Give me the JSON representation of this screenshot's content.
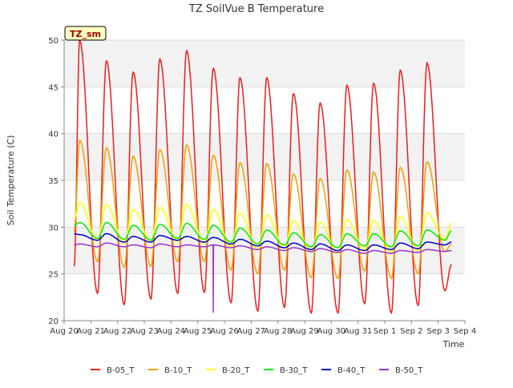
{
  "chart_data": {
    "type": "line",
    "title": "TZ SoilVue B Temperature",
    "xlabel": "Time",
    "ylabel": "Soil Temperature (C)",
    "ylim": [
      20,
      50
    ],
    "xlim": [
      "2023-08-20",
      "2023-09-04"
    ],
    "y_ticks": [
      20,
      25,
      30,
      35,
      40,
      45,
      50
    ],
    "x_ticks": [
      "Aug 20",
      "Aug 21",
      "Aug 22",
      "Aug 23",
      "Aug 24",
      "Aug 25",
      "Aug 26",
      "Aug 27",
      "Aug 28",
      "Aug 29",
      "Aug 30",
      "Aug 31",
      "Sep 1",
      "Sep 2",
      "Sep 3",
      "Sep 4"
    ],
    "grid": true,
    "badge": "TZ_sm",
    "legend_position": "bottom",
    "series_style": "diurnal cycle: daily max near 14:00, daily min near 06:00",
    "series": [
      {
        "name": "B-05_T",
        "color": "#ee1c1c",
        "start": "Aug 20 09:00",
        "start_value": 25.8,
        "end": "Sep 3 12:00",
        "end_value": 26.0,
        "daily_min": [
          22.5,
          22.9,
          21.7,
          22.3,
          22.9,
          23.0,
          21.9,
          21.0,
          21.4,
          20.8,
          20.8,
          21.8,
          20.8,
          21.6,
          23.2
        ],
        "daily_max": [
          50.0,
          47.8,
          46.6,
          48.0,
          48.9,
          47.0,
          46.0,
          46.0,
          44.3,
          43.3,
          45.2,
          45.4,
          46.8,
          47.6
        ]
      },
      {
        "name": "B-10_T",
        "color": "#f0a000",
        "start": "Aug 20 09:00",
        "start_value": 29.5,
        "end": "Sep 3 12:00",
        "end_value": 28.2,
        "daily_min": [
          26.0,
          26.3,
          25.7,
          25.8,
          26.3,
          26.3,
          25.4,
          25.0,
          25.4,
          24.6,
          24.5,
          25.3,
          24.5,
          25.0,
          27.4
        ],
        "daily_max": [
          39.3,
          38.5,
          37.6,
          38.3,
          38.8,
          37.7,
          36.9,
          36.8,
          35.7,
          35.2,
          36.1,
          35.9,
          36.4,
          37.0
        ]
      },
      {
        "name": "B-20_T",
        "color": "#ffff00",
        "start": "Aug 20 09:00",
        "start_value": 30.9,
        "end": "Sep 3 12:00",
        "end_value": 30.4,
        "daily_min": [
          28.4,
          28.6,
          28.3,
          28.5,
          28.5,
          28.3,
          27.9,
          27.6,
          27.7,
          27.3,
          27.2,
          27.6,
          27.2,
          27.5,
          28.7
        ],
        "daily_max": [
          32.6,
          32.4,
          31.9,
          32.1,
          32.4,
          31.9,
          31.5,
          31.3,
          30.7,
          30.5,
          30.8,
          30.7,
          31.1,
          31.5
        ]
      },
      {
        "name": "B-30_T",
        "color": "#00ee00",
        "start": "Aug 20 09:00",
        "start_value": 30.2,
        "end": "Sep 3 12:00",
        "end_value": 29.6,
        "daily_min": [
          28.6,
          28.8,
          28.7,
          28.6,
          28.8,
          28.7,
          28.4,
          28.2,
          28.1,
          27.9,
          27.8,
          28.0,
          27.9,
          28.0,
          28.6
        ],
        "daily_max": [
          30.5,
          30.5,
          30.2,
          30.3,
          30.4,
          30.2,
          29.9,
          29.7,
          29.4,
          29.2,
          29.3,
          29.3,
          29.6,
          29.7
        ]
      },
      {
        "name": "B-40_T",
        "color": "#0000cc",
        "start": "Aug 20 09:00",
        "start_value": 29.3,
        "end": "Sep 3 12:00",
        "end_value": 28.4,
        "daily_min": [
          28.7,
          28.6,
          28.4,
          28.4,
          28.6,
          28.4,
          28.2,
          28.0,
          27.8,
          27.6,
          27.5,
          27.5,
          27.6,
          27.7,
          28.1
        ],
        "daily_max": [
          29.2,
          29.3,
          29.0,
          29.1,
          29.0,
          28.9,
          28.7,
          28.5,
          28.3,
          28.2,
          28.1,
          28.1,
          28.3,
          28.4
        ]
      },
      {
        "name": "B-50_T",
        "color": "#9933cc",
        "start": "Aug 20 09:00",
        "start_value": 28.1,
        "end": "Sep 3 12:00",
        "end_value": 27.5,
        "daily_min": [
          28.0,
          27.9,
          27.9,
          27.8,
          27.9,
          27.9,
          27.8,
          27.6,
          27.5,
          27.4,
          27.3,
          27.2,
          27.2,
          27.3,
          27.4
        ],
        "daily_max": [
          28.2,
          28.3,
          28.1,
          28.2,
          28.1,
          28.1,
          28.0,
          27.9,
          27.8,
          27.7,
          27.6,
          27.5,
          27.5,
          27.6
        ],
        "dips": [
          {
            "at": "Aug 25 14:00",
            "value": 20.9
          }
        ]
      }
    ]
  }
}
